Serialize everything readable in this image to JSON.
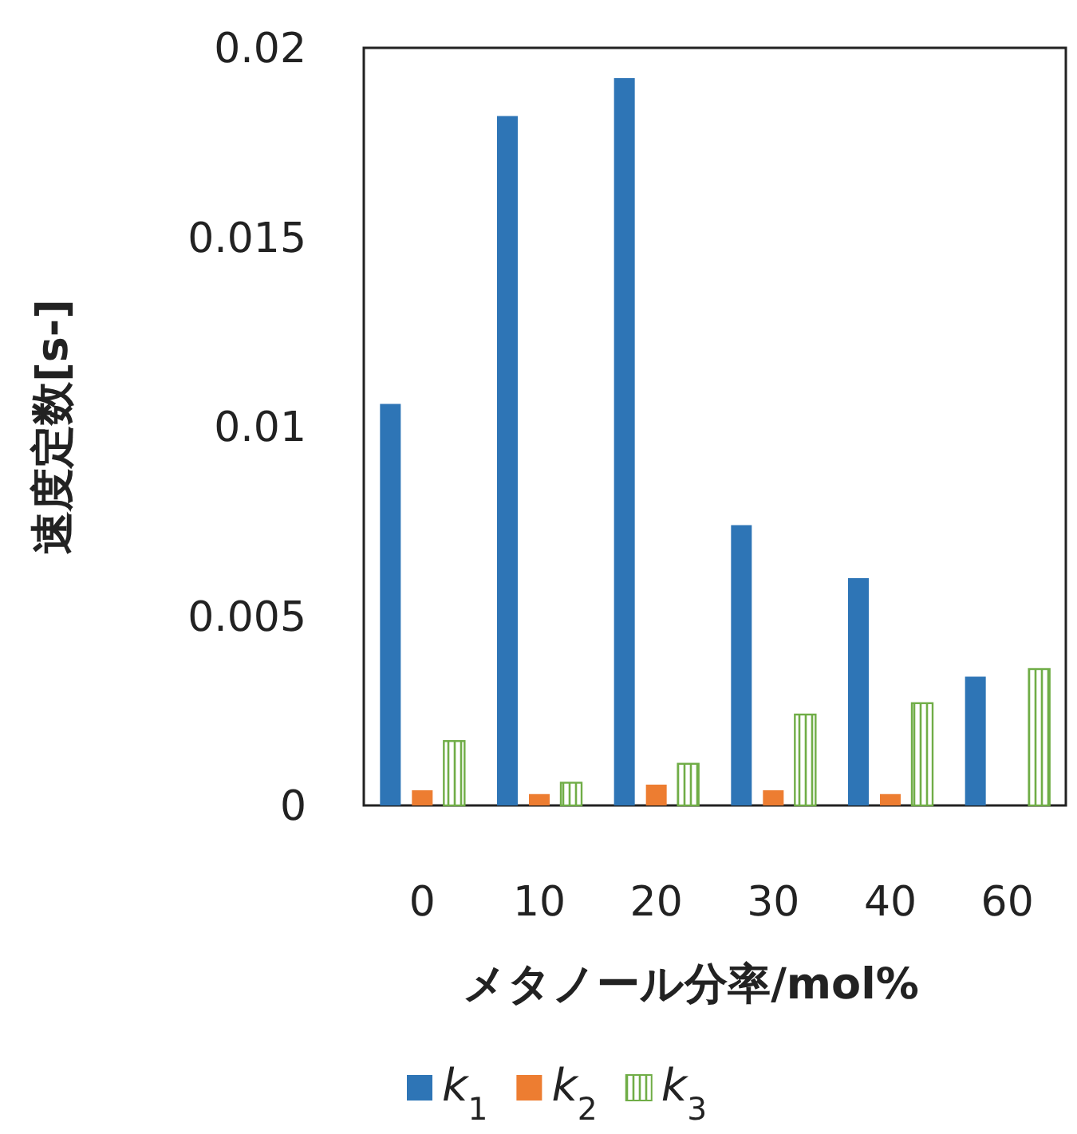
{
  "chart_data": {
    "type": "bar",
    "xlabel": "メタノール分率/mol%",
    "ylabel": "速度定数[s-]",
    "categories": [
      "0",
      "10",
      "20",
      "30",
      "40",
      "60"
    ],
    "series": [
      {
        "name": "*k*$_{1}$",
        "color": "#2e75b6",
        "values": [
          0.0106,
          0.0182,
          0.0192,
          0.0074,
          0.006,
          0.0034
        ]
      },
      {
        "name": "*k*$_{2}$",
        "color": "#ed7d31",
        "values": [
          0.0004,
          0.0003,
          0.00055,
          0.0004,
          0.0003,
          0
        ]
      },
      {
        "name": "*k*$_{3}$",
        "color": "#70ad47",
        "values": [
          0.0017,
          0.0006,
          0.0011,
          0.0024,
          0.0027,
          0.0036
        ]
      }
    ],
    "ylim": [
      0,
      0.02
    ],
    "yticks": [
      0,
      0.005,
      0.01,
      0.015,
      0.02
    ],
    "grid": false,
    "legend": "bottom"
  }
}
